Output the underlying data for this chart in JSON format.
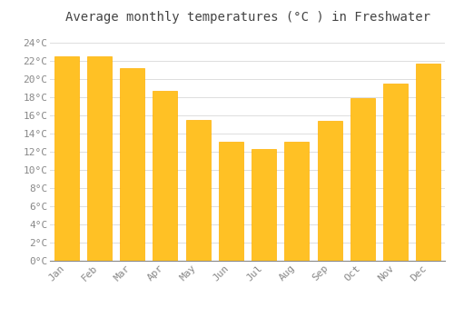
{
  "title": "Average monthly temperatures (°C ) in Freshwater",
  "months": [
    "Jan",
    "Feb",
    "Mar",
    "Apr",
    "May",
    "Jun",
    "Jul",
    "Aug",
    "Sep",
    "Oct",
    "Nov",
    "Dec"
  ],
  "temperatures": [
    22.5,
    22.5,
    21.2,
    18.7,
    15.5,
    13.1,
    12.3,
    13.1,
    15.4,
    17.9,
    19.5,
    21.7
  ],
  "bar_color_main": "#FFC125",
  "bar_color_edge": "#FFB000",
  "background_color": "#FFFFFF",
  "grid_color": "#DDDDDD",
  "ylim": [
    0,
    25.5
  ],
  "yticks": [
    0,
    2,
    4,
    6,
    8,
    10,
    12,
    14,
    16,
    18,
    20,
    22,
    24
  ],
  "title_fontsize": 10,
  "tick_fontsize": 8,
  "title_color": "#444444",
  "tick_color": "#888888"
}
